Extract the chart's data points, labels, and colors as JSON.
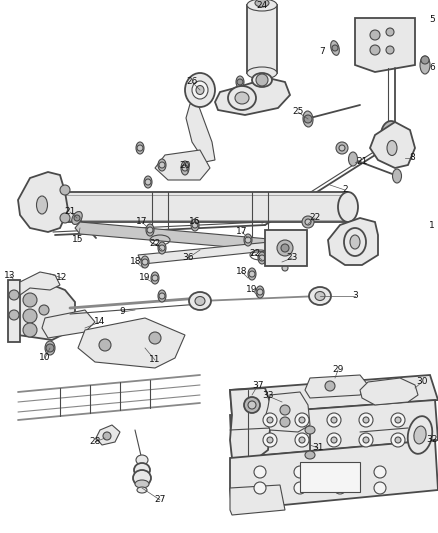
{
  "bg_color": "#ffffff",
  "lc": "#4a4a4a",
  "fig_width": 4.38,
  "fig_height": 5.33,
  "dpi": 100
}
